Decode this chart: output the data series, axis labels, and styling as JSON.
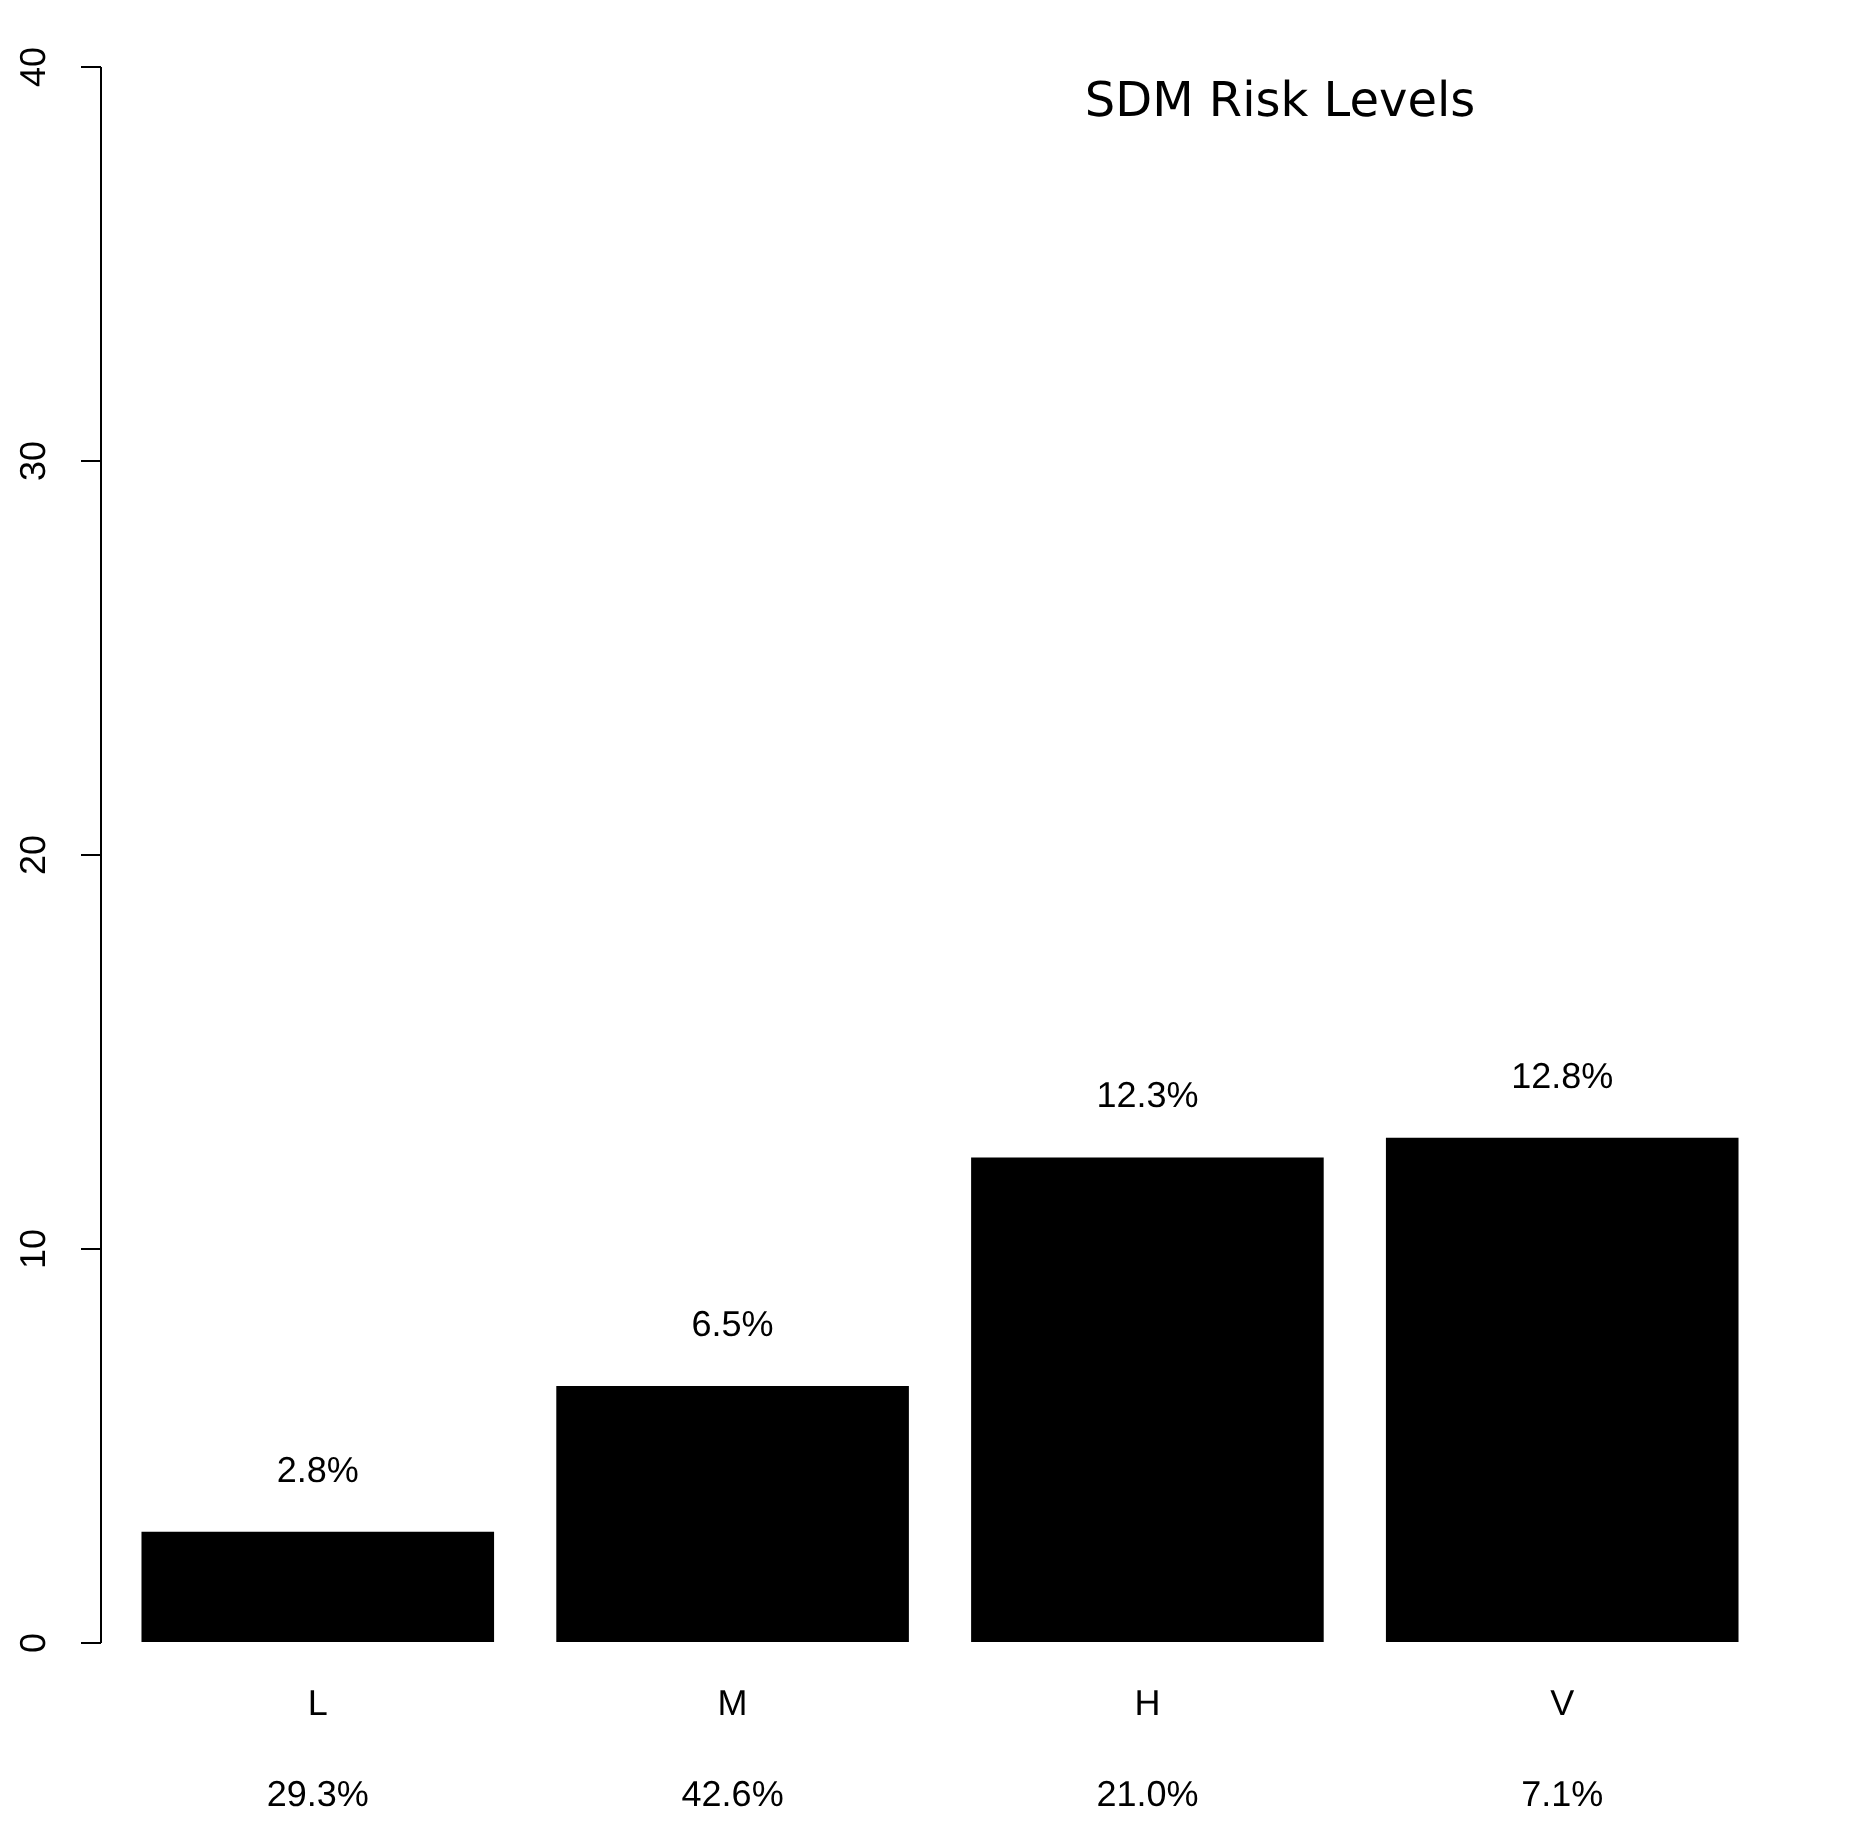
{
  "chart_data": {
    "type": "bar",
    "title": "SDM Risk Levels",
    "categories": [
      "L",
      "M",
      "H",
      "V"
    ],
    "values": [
      2.8,
      6.5,
      12.3,
      12.8
    ],
    "color": "#000000",
    "data_labels": true,
    "value_labels": [
      "2.8%",
      "6.5%",
      "12.3%",
      "12.8%"
    ],
    "annotations": [
      "29.3%",
      "42.6%",
      "21.0%",
      "7.1%"
    ],
    "ylim": [
      0,
      40
    ],
    "yticks": [
      0,
      10,
      20,
      30,
      40
    ],
    "grid": false
  }
}
